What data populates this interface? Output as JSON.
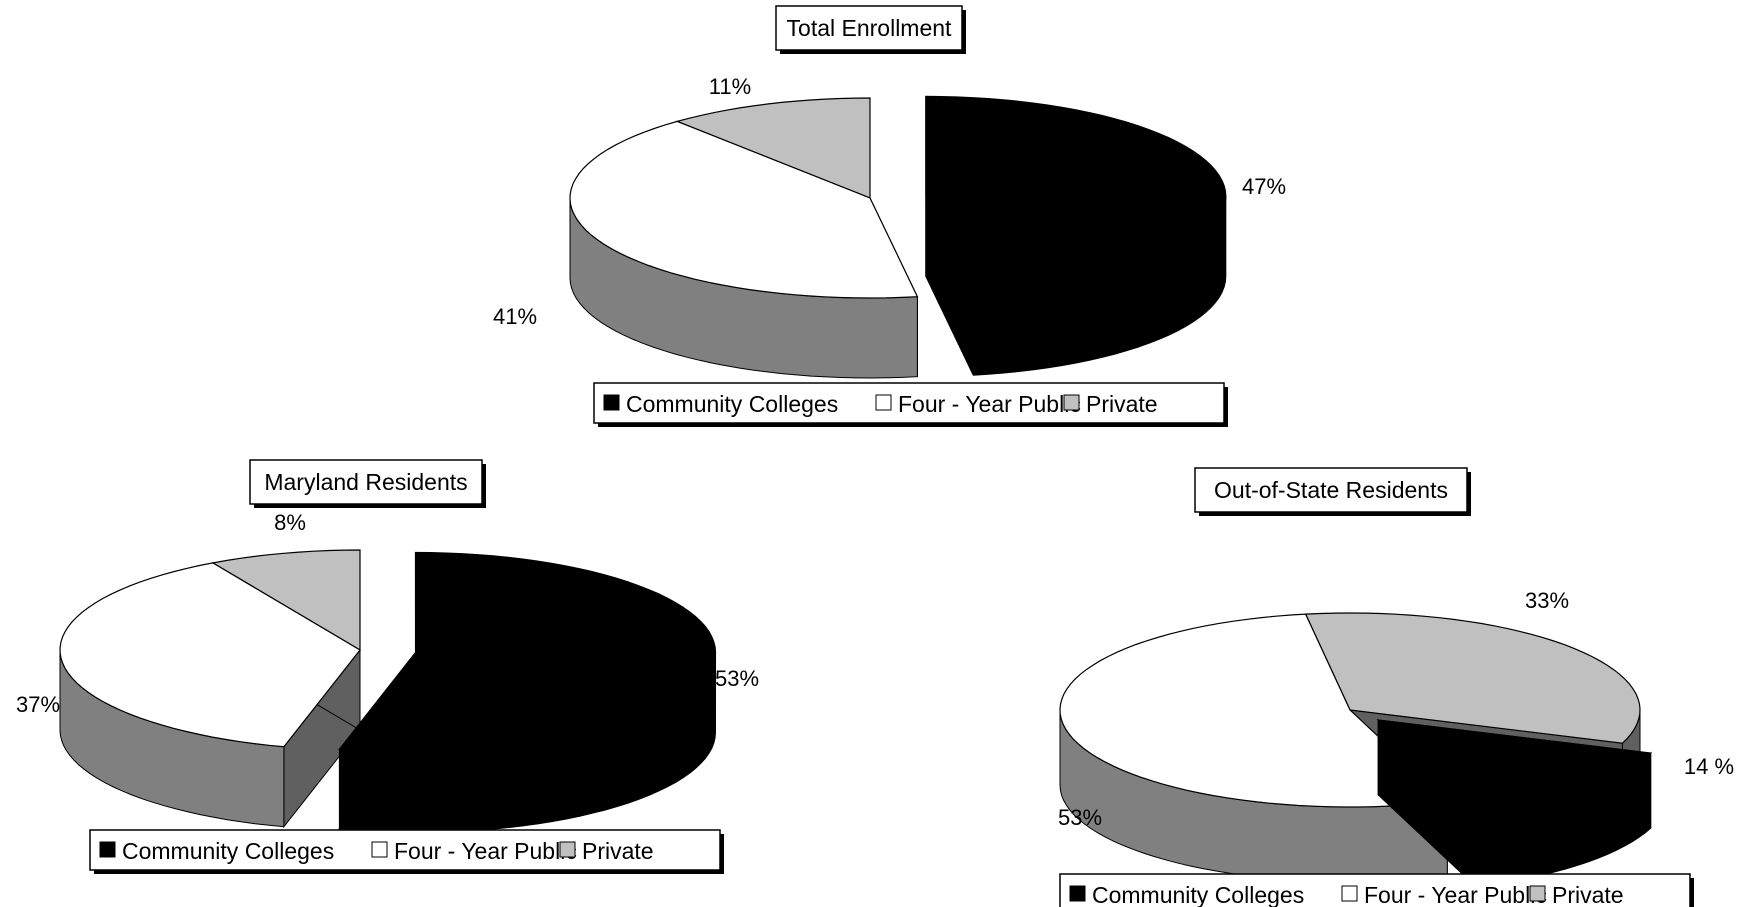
{
  "chart_data": [
    {
      "type": "pie",
      "style": "3d-exploded",
      "title": "Total Enrollment",
      "categories": [
        "Community Colleges",
        "Four - Year Public",
        "Private"
      ],
      "values": [
        47,
        41,
        11
      ],
      "value_labels": [
        "47%",
        "41%",
        "11%"
      ],
      "legend": {
        "placement": "bottom",
        "items": [
          "Community Colleges",
          "Four - Year Public",
          "Private"
        ]
      }
    },
    {
      "type": "pie",
      "style": "3d-exploded",
      "title": "Maryland Residents",
      "categories": [
        "Community Colleges",
        "Four - Year Public",
        "Private"
      ],
      "values": [
        53,
        37,
        8
      ],
      "value_labels": [
        "53%",
        "37%",
        "8%"
      ],
      "legend": {
        "placement": "bottom",
        "items": [
          "Community Colleges",
          "Four - Year Public",
          "Private"
        ]
      }
    },
    {
      "type": "pie",
      "style": "3d-exploded",
      "title": "Out-of-State Residents",
      "categories": [
        "Community Colleges",
        "Four - Year Public",
        "Private"
      ],
      "values": [
        14,
        53,
        33
      ],
      "value_labels": [
        "14 %",
        "53%",
        "33%"
      ],
      "legend": {
        "placement": "bottom",
        "items": [
          "Community Colleges",
          "Four - Year Public",
          "Private"
        ]
      }
    }
  ],
  "colors": {
    "community_colleges": "#000000",
    "four_year_public": "#ffffff",
    "four_year_public_side": "#808080",
    "private": "#c0c0c0",
    "private_side": "#606060",
    "outline": "#000000"
  }
}
